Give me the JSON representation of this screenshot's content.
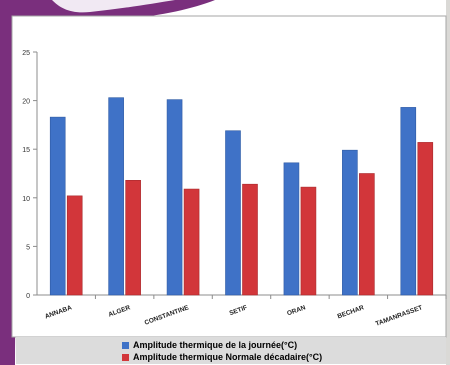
{
  "chart_data": {
    "type": "bar",
    "categories": [
      "ANNABA",
      "ALGER",
      "CONSTANTINE",
      "SETIF",
      "ORAN",
      "BECHAR",
      "TAMANRASSET"
    ],
    "series": [
      {
        "name": "Amplitude thermique de la journée(°C)",
        "color": "#3f72c7",
        "values": [
          18.3,
          20.3,
          20.1,
          16.9,
          13.6,
          14.9,
          19.3
        ]
      },
      {
        "name": "Amplitude thermique Normale décadaire(°C)",
        "color": "#d2363a",
        "values": [
          10.2,
          11.8,
          10.9,
          11.4,
          11.1,
          12.5,
          15.7
        ]
      }
    ],
    "yticks": [
      "0",
      "5",
      "10",
      "15",
      "20",
      "25"
    ],
    "ylim": [
      0,
      25
    ],
    "grid": false,
    "legend": "bottom",
    "title": "",
    "xlabel": "",
    "ylabel": ""
  },
  "legend": {
    "items": [
      {
        "label": "Amplitude thermique de la journée(°C)",
        "color": "#3f72c7"
      },
      {
        "label": "Amplitude thermique Normale décadaire(°C)",
        "color": "#d2363a"
      }
    ]
  },
  "decor": {
    "accent": "#7a2f7d"
  }
}
